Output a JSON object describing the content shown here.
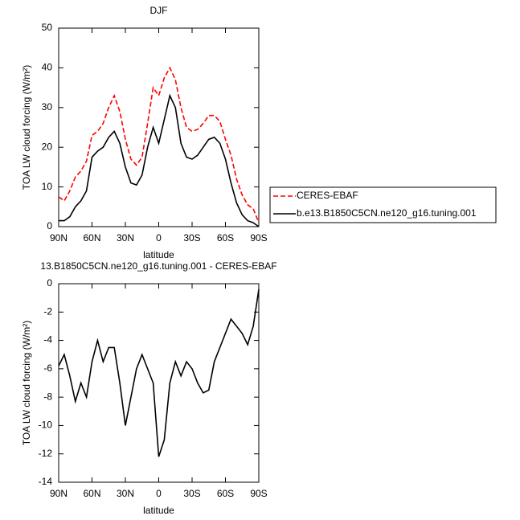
{
  "chart_data": [
    {
      "type": "line",
      "title": "DJF",
      "xlabel": "latitude",
      "ylabel": "TOA LW cloud forcing (W/m²)",
      "x": [
        90,
        85,
        80,
        75,
        70,
        65,
        60,
        55,
        50,
        45,
        40,
        35,
        30,
        25,
        20,
        15,
        10,
        5,
        0,
        -5,
        -10,
        -15,
        -20,
        -25,
        -30,
        -35,
        -40,
        -45,
        -50,
        -55,
        -60,
        -65,
        -70,
        -75,
        -80,
        -85,
        -90
      ],
      "series": [
        {
          "name": "CERES-EBAF",
          "color": "#ff0000",
          "linestyle": "dashed",
          "values": [
            7.5,
            6.5,
            9,
            12.5,
            14,
            16.5,
            23,
            24,
            26,
            30,
            33,
            29,
            22,
            17,
            15.5,
            17.5,
            26,
            35,
            33,
            37.5,
            40,
            37,
            30,
            25,
            24,
            24.5,
            26,
            28,
            28,
            26.5,
            22,
            18,
            12,
            8,
            5.5,
            4.5,
            1
          ]
        },
        {
          "name": "b.e13.B1850C5CN.ne120_g16.tuning.001",
          "color": "#000000",
          "linestyle": "solid",
          "values": [
            1.5,
            1.5,
            2.5,
            5,
            6.5,
            9,
            17.5,
            19,
            20,
            22.5,
            24,
            21,
            15,
            11,
            10.5,
            13,
            20,
            25,
            21,
            27,
            33,
            30,
            21,
            17.5,
            17,
            18,
            20,
            22,
            22.5,
            21,
            17,
            11,
            6,
            3,
            1.5,
            1,
            0
          ]
        }
      ],
      "xlim": [
        90,
        -90
      ],
      "xticks": [
        {
          "value": 90,
          "label": "90N"
        },
        {
          "value": 60,
          "label": "60N"
        },
        {
          "value": 30,
          "label": "30N"
        },
        0,
        {
          "value": -30,
          "label": "30S"
        },
        {
          "value": -60,
          "label": "60S"
        },
        {
          "value": -90,
          "label": "90S"
        }
      ],
      "ylim": [
        0,
        50
      ],
      "yticks": [
        0,
        10,
        20,
        30,
        40,
        50
      ],
      "legend": "right"
    },
    {
      "type": "line",
      "title": "13.B1850C5CN.ne120_g16.tuning.001 - CERES-EBAF",
      "xlabel": "latitude",
      "ylabel": "TOA LW cloud forcing (W/m²)",
      "x": [
        90,
        85,
        80,
        75,
        70,
        65,
        60,
        55,
        50,
        45,
        40,
        35,
        30,
        25,
        20,
        15,
        10,
        5,
        0,
        -5,
        -10,
        -15,
        -20,
        -25,
        -30,
        -35,
        -40,
        -45,
        -50,
        -55,
        -60,
        -65,
        -70,
        -75,
        -80,
        -85,
        -90
      ],
      "series": [
        {
          "color": "#000000",
          "linestyle": "solid",
          "values": [
            -5.8,
            -5,
            -6.5,
            -8.3,
            -7,
            -8,
            -5.5,
            -4,
            -5.5,
            -4.5,
            -4.5,
            -7,
            -10,
            -8,
            -6,
            -5,
            -6,
            -7,
            -12.2,
            -11,
            -7,
            -5.5,
            -6.5,
            -5.5,
            -6,
            -7,
            -7.7,
            -7.5,
            -5.5,
            -4.5,
            -3.5,
            -2.5,
            -3,
            -3.5,
            -4.3,
            -3,
            -0.4
          ]
        }
      ],
      "xlim": [
        90,
        -90
      ],
      "xticks": [
        {
          "value": 90,
          "label": "90N"
        },
        {
          "value": 60,
          "label": "60N"
        },
        {
          "value": 30,
          "label": "30N"
        },
        0,
        {
          "value": -30,
          "label": "30S"
        },
        {
          "value": -60,
          "label": "60S"
        },
        {
          "value": -90,
          "label": "90S"
        }
      ],
      "ylim": [
        -14,
        0
      ],
      "yticks": [
        -14,
        -12,
        -10,
        -8,
        -6,
        -4,
        -2,
        0
      ]
    }
  ]
}
